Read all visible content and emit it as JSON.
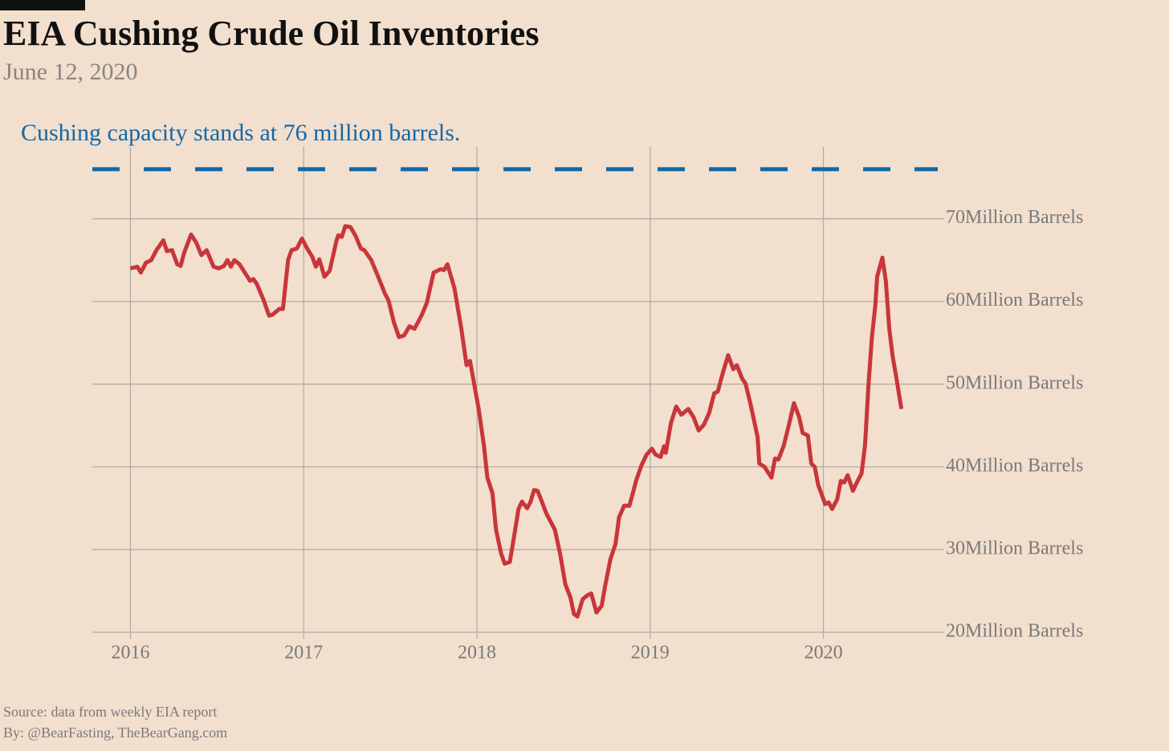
{
  "chart_data": {
    "type": "line",
    "title": "EIA Cushing Crude Oil Inventories",
    "subtitle": "June 12, 2020",
    "annotation": {
      "text": "Cushing capacity stands at 76 million barrels.",
      "value": 76,
      "color": "#1069a8"
    },
    "source": "Source: data from  weekly EIA report",
    "byline": "By: @BearFasting, TheBearGang.com",
    "xlim": [
      2015.78,
      2020.66
    ],
    "ylim": [
      20,
      78.7
    ],
    "xticks": [
      2016,
      2017,
      2018,
      2019,
      2020
    ],
    "yticks": [
      {
        "value": 20,
        "label": "20Million Barrels"
      },
      {
        "value": 30,
        "label": "30Million Barrels"
      },
      {
        "value": 40,
        "label": "40Million Barrels"
      },
      {
        "value": 50,
        "label": "50Million Barrels"
      },
      {
        "value": 60,
        "label": "60Million Barrels"
      },
      {
        "value": 70,
        "label": "70Million Barrels"
      }
    ],
    "grid": true,
    "series": [
      {
        "color": "#c8363a",
        "x": [
          2016.0,
          2016.04,
          2016.06,
          2016.09,
          2016.12,
          2016.15,
          2016.19,
          2016.21,
          2016.24,
          2016.27,
          2016.29,
          2016.31,
          2016.35,
          2016.38,
          2016.41,
          2016.44,
          2016.48,
          2016.51,
          2016.54,
          2016.56,
          2016.58,
          2016.6,
          2016.63,
          2016.66,
          2016.69,
          2016.71,
          2016.73,
          2016.77,
          2016.8,
          2016.82,
          2016.86,
          2016.88,
          2016.91,
          2016.93,
          2016.96,
          2016.99,
          2017.02,
          2017.05,
          2017.07,
          2017.09,
          2017.12,
          2017.15,
          2017.19,
          2017.2,
          2017.22,
          2017.24,
          2017.27,
          2017.3,
          2017.33,
          2017.35,
          2017.39,
          2017.43,
          2017.47,
          2017.49,
          2017.52,
          2017.55,
          2017.58,
          2017.61,
          2017.64,
          2017.68,
          2017.71,
          2017.75,
          2017.79,
          2017.81,
          2017.83,
          2017.87,
          2017.91,
          2017.94,
          2017.96,
          2018.01,
          2018.04,
          2018.06,
          2018.09,
          2018.11,
          2018.14,
          2018.16,
          2018.19,
          2018.21,
          2018.24,
          2018.26,
          2018.29,
          2018.31,
          2018.33,
          2018.35,
          2018.38,
          2018.4,
          2018.45,
          2018.48,
          2018.51,
          2018.54,
          2018.56,
          2018.58,
          2018.61,
          2018.64,
          2018.66,
          2018.69,
          2018.72,
          2018.74,
          2018.77,
          2018.8,
          2018.82,
          2018.85,
          2018.88,
          2018.9,
          2018.92,
          2018.95,
          2018.98,
          2019.01,
          2019.03,
          2019.06,
          2019.08,
          2019.09,
          2019.12,
          2019.15,
          2019.18,
          2019.22,
          2019.25,
          2019.28,
          2019.31,
          2019.34,
          2019.37,
          2019.39,
          2019.42,
          2019.45,
          2019.48,
          2019.5,
          2019.53,
          2019.55,
          2019.58,
          2019.62,
          2019.63,
          2019.66,
          2019.7,
          2019.72,
          2019.74,
          2019.77,
          2019.8,
          2019.83,
          2019.86,
          2019.88,
          2019.91,
          2019.93,
          2019.95,
          2019.97,
          2020.0,
          2020.01,
          2020.03,
          2020.05,
          2020.08,
          2020.1,
          2020.12,
          2020.14,
          2020.17,
          2020.19,
          2020.22,
          2020.24,
          2020.26,
          2020.28,
          2020.3,
          2020.31,
          2020.34,
          2020.36,
          2020.38,
          2020.4,
          2020.42,
          2020.45
        ],
        "values": [
          64.0,
          64.2,
          63.5,
          64.7,
          65.0,
          66.2,
          67.4,
          66.1,
          66.2,
          64.5,
          64.3,
          65.9,
          68.1,
          67.1,
          65.6,
          66.2,
          64.2,
          64.0,
          64.3,
          65.0,
          64.2,
          65.0,
          64.5,
          63.5,
          62.5,
          62.7,
          62.1,
          60.1,
          58.3,
          58.4,
          59.1,
          59.1,
          65.0,
          66.2,
          66.4,
          67.6,
          66.4,
          65.4,
          64.2,
          65.1,
          63.0,
          63.7,
          67.4,
          68.0,
          67.8,
          69.1,
          69.0,
          67.9,
          66.4,
          66.2,
          65.0,
          63.0,
          60.9,
          60.1,
          57.5,
          55.7,
          55.9,
          57.0,
          56.7,
          58.3,
          59.8,
          63.5,
          63.9,
          63.8,
          64.5,
          61.6,
          56.7,
          52.3,
          52.8,
          47.0,
          42.6,
          38.7,
          36.8,
          32.4,
          29.5,
          28.3,
          28.5,
          31.0,
          34.9,
          35.8,
          35.0,
          35.8,
          37.2,
          37.1,
          35.5,
          34.4,
          32.4,
          29.5,
          25.8,
          24.2,
          22.2,
          21.9,
          24.0,
          24.5,
          24.7,
          22.4,
          23.2,
          25.6,
          28.8,
          30.7,
          33.9,
          35.3,
          35.3,
          36.8,
          38.4,
          40.2,
          41.5,
          42.2,
          41.5,
          41.2,
          42.5,
          41.7,
          45.3,
          47.3,
          46.3,
          47.0,
          46.0,
          44.4,
          45.1,
          46.5,
          48.9,
          49.1,
          51.4,
          53.5,
          51.8,
          52.3,
          50.7,
          50.1,
          47.5,
          43.6,
          40.4,
          40.0,
          38.7,
          41.0,
          40.9,
          42.5,
          45.0,
          47.7,
          46.0,
          44.1,
          43.8,
          40.4,
          40.0,
          37.8,
          36.1,
          35.5,
          35.7,
          34.9,
          36.1,
          38.3,
          38.1,
          39.0,
          37.1,
          38.0,
          39.2,
          42.6,
          49.9,
          55.7,
          59.6,
          63.0,
          65.3,
          62.5,
          56.7,
          53.3,
          50.9,
          47.0
        ]
      }
    ]
  }
}
